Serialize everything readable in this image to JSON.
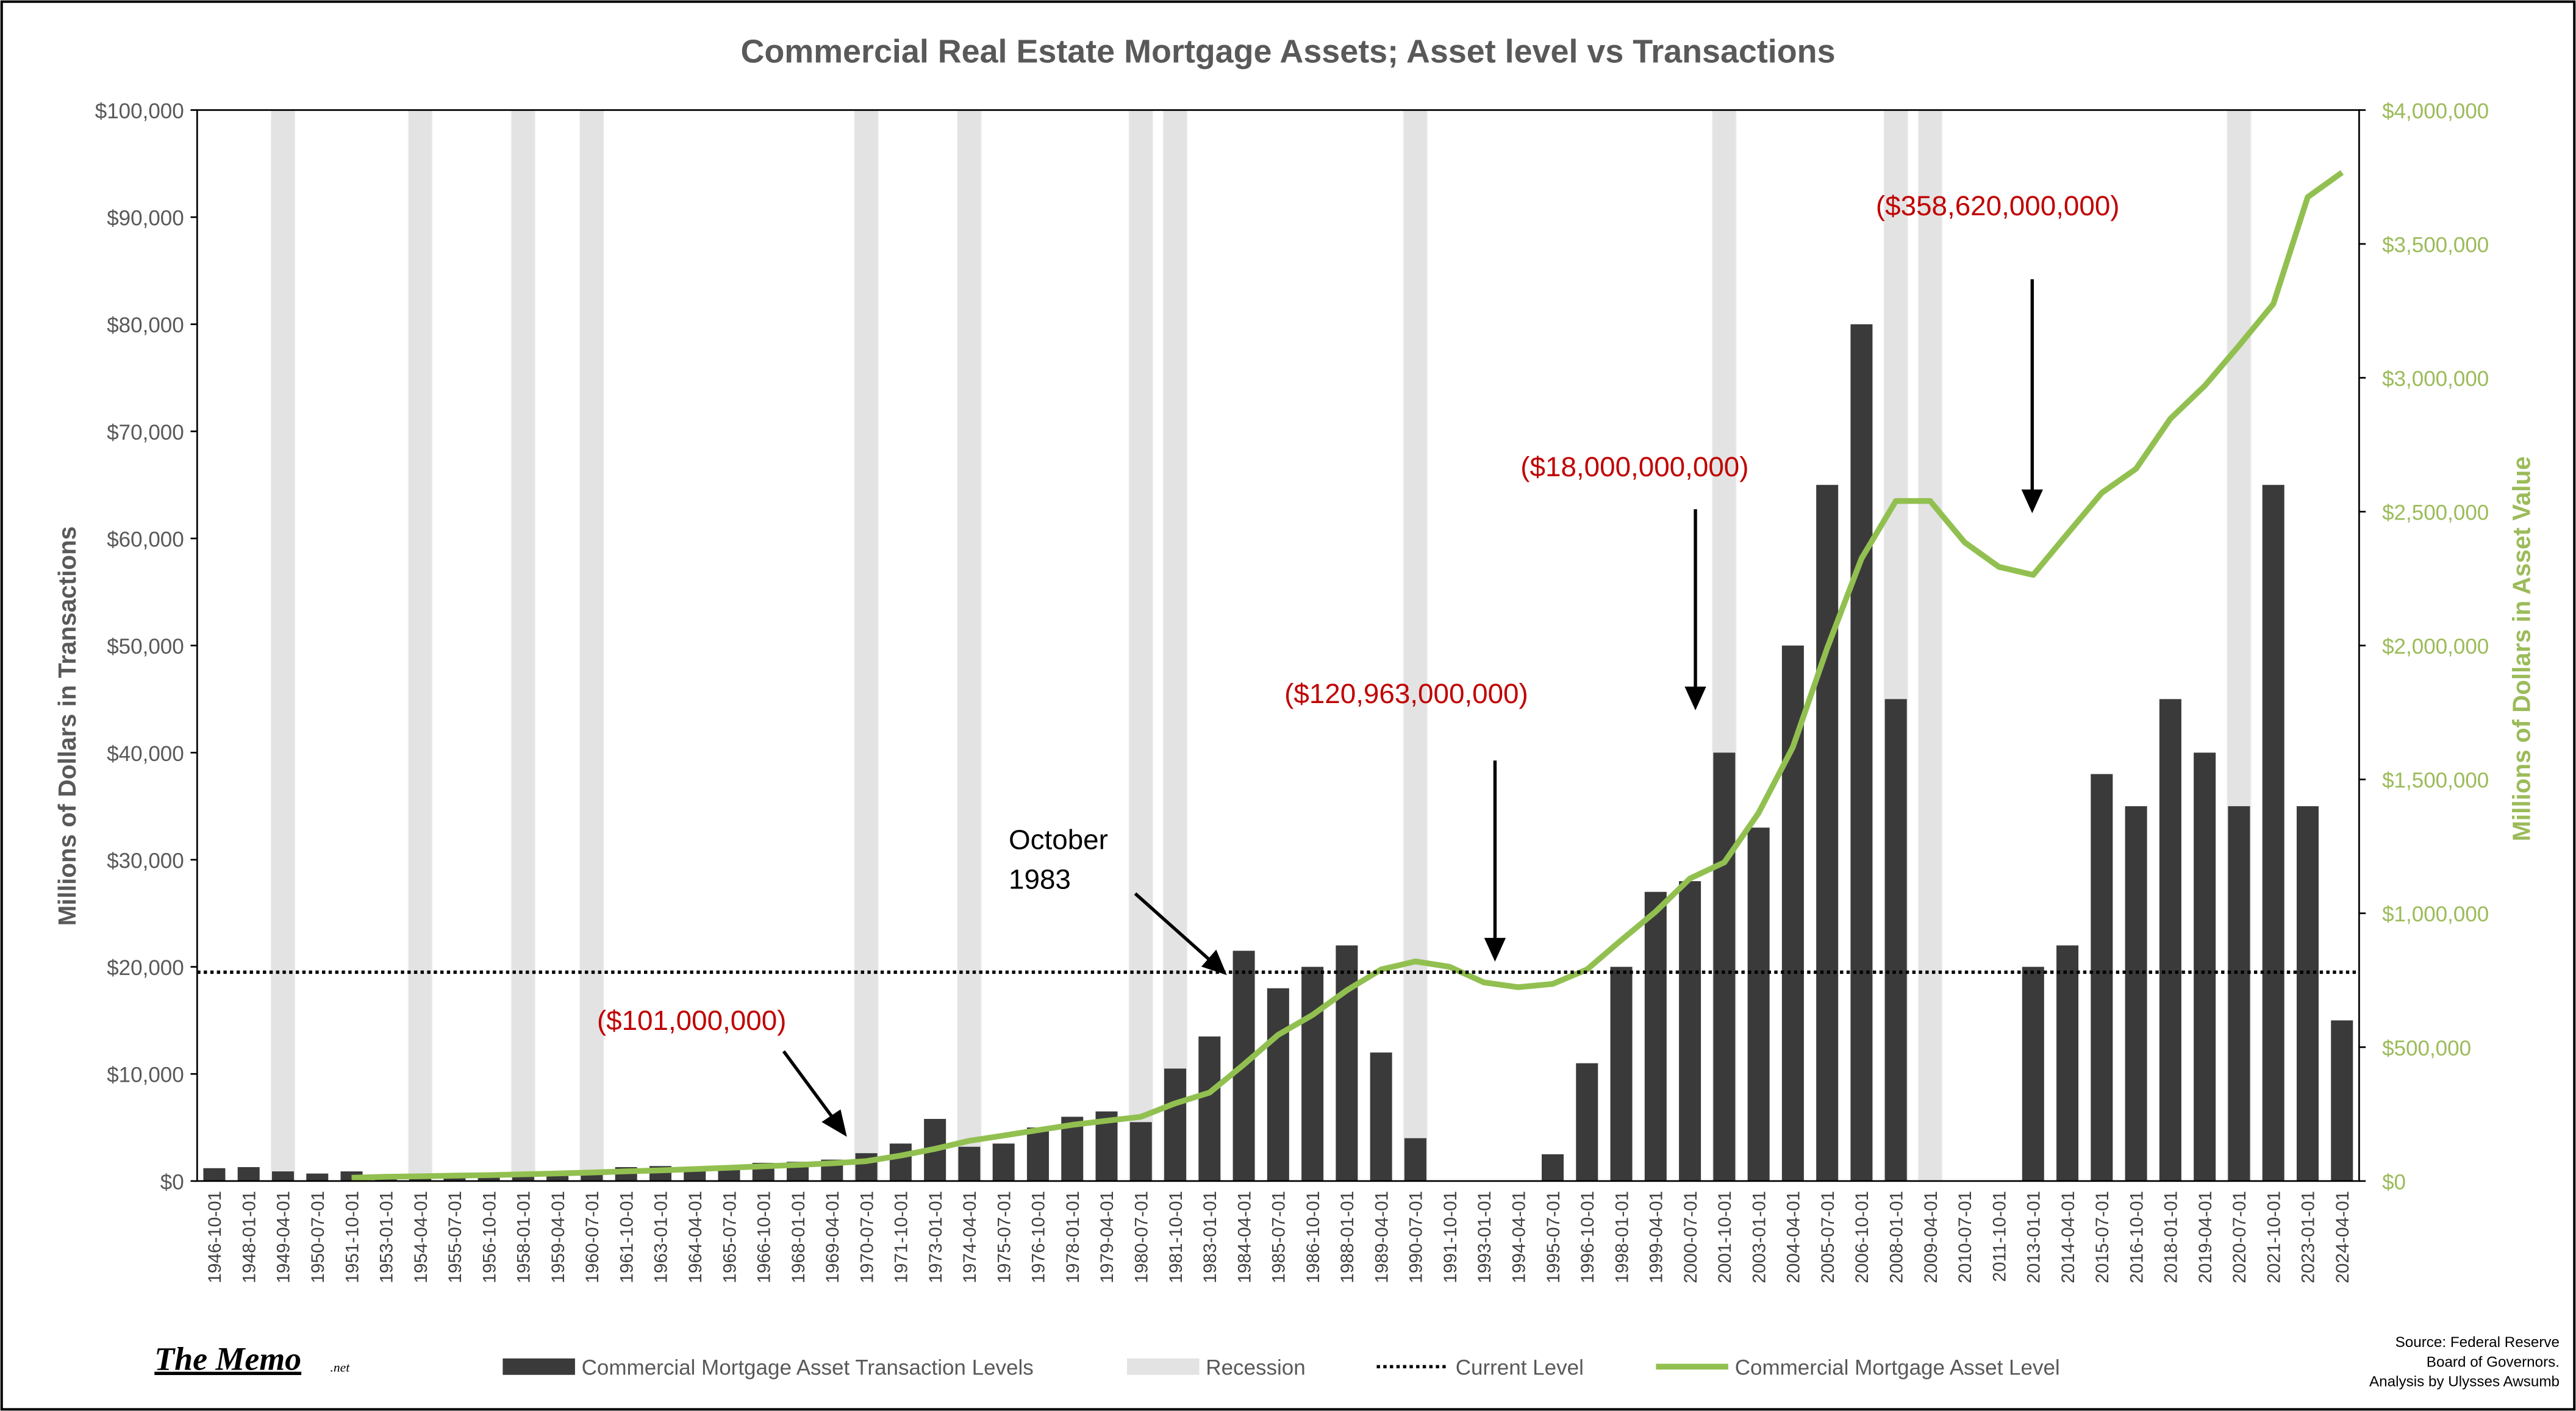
{
  "chart_data": {
    "type": "bar_line",
    "title": "Commercial Real Estate Mortgage Assets; Asset level vs Transactions",
    "y_label": "Millions of Dollars in Transactions",
    "y2_label": "Millions of Dollars in Asset Value",
    "categories": [
      "1946-10-01",
      "1948-01-01",
      "1949-04-01",
      "1950-07-01",
      "1951-10-01",
      "1953-01-01",
      "1954-04-01",
      "1955-07-01",
      "1956-10-01",
      "1958-01-01",
      "1959-04-01",
      "1960-07-01",
      "1961-10-01",
      "1963-01-01",
      "1964-04-01",
      "1965-07-01",
      "1966-10-01",
      "1968-01-01",
      "1969-04-01",
      "1970-07-01",
      "1971-10-01",
      "1973-01-01",
      "1974-04-01",
      "1975-07-01",
      "1976-10-01",
      "1978-01-01",
      "1979-04-01",
      "1980-07-01",
      "1981-10-01",
      "1983-01-01",
      "1984-04-01",
      "1985-07-01",
      "1986-10-01",
      "1988-01-01",
      "1989-04-01",
      "1990-07-01",
      "1991-10-01",
      "1993-01-01",
      "1994-04-01",
      "1995-07-01",
      "1996-10-01",
      "1998-01-01",
      "1999-04-01",
      "2000-07-01",
      "2001-10-01",
      "2003-01-01",
      "2004-04-01",
      "2005-07-01",
      "2006-10-01",
      "2008-01-01",
      "2009-04-01",
      "2010-07-01",
      "2011-10-01",
      "2013-01-01",
      "2014-04-01",
      "2015-07-01",
      "2016-10-01",
      "2018-01-01",
      "2019-04-01",
      "2020-07-01",
      "2021-10-01",
      "2023-01-01",
      "2024-04-01"
    ],
    "series": [
      {
        "name": "Commercial Mortgage Asset Transaction Levels",
        "type": "bar",
        "color": "#3a3a3a",
        "values": [
          1200,
          1300,
          900,
          700,
          900,
          200,
          300,
          400,
          500,
          600,
          800,
          900,
          1300,
          1400,
          1300,
          1400,
          1700,
          1800,
          2000,
          2600,
          3500,
          5800,
          3200,
          3500,
          5000,
          6000,
          6500,
          5500,
          10500,
          13500,
          21500,
          18000,
          20000,
          22000,
          12000,
          4000,
          0,
          0,
          0,
          2500,
          11000,
          20000,
          27000,
          28000,
          40000,
          33000,
          50000,
          65000,
          80000,
          45000,
          0,
          0,
          0,
          20000,
          22000,
          38000,
          35000,
          45000,
          40000,
          35000,
          65000,
          35000,
          15000
        ]
      },
      {
        "name": "Recession",
        "type": "band",
        "color": "#e3e3e3",
        "values": [
          null,
          null,
          100000,
          null,
          null,
          null,
          100000,
          null,
          null,
          100000,
          null,
          100000,
          null,
          null,
          null,
          null,
          null,
          null,
          null,
          100000,
          null,
          null,
          100000,
          null,
          null,
          null,
          null,
          100000,
          100000,
          null,
          null,
          null,
          null,
          null,
          null,
          100000,
          null,
          null,
          null,
          null,
          null,
          null,
          null,
          null,
          100000,
          null,
          null,
          null,
          null,
          100000,
          100000,
          null,
          null,
          null,
          null,
          null,
          null,
          null,
          null,
          100000,
          null,
          null,
          null
        ]
      },
      {
        "name": "Commercial Mortgage Asset Level",
        "type": "line",
        "axis": "y2",
        "color": "#92c050",
        "values": [
          null,
          null,
          null,
          null,
          12000,
          16000,
          18000,
          20000,
          22000,
          25000,
          28000,
          32000,
          36000,
          40000,
          45000,
          50000,
          55000,
          60000,
          66000,
          74000,
          95000,
          120000,
          150000,
          170000,
          190000,
          210000,
          225000,
          240000,
          290000,
          330000,
          435000,
          546000,
          620000,
          712000,
          790000,
          820000,
          800000,
          742000,
          724000,
          736000,
          790000,
          900000,
          1006000,
          1130000,
          1190000,
          1374000,
          1620000,
          1990000,
          2325000,
          2540000,
          2540000,
          2386000,
          2294000,
          2264000,
          2417000,
          2570000,
          2660000,
          2847000,
          2970000,
          3120000,
          3276000,
          3675000,
          3767000
        ]
      }
    ],
    "reference_line": {
      "name": "Current Level",
      "value": 19500,
      "color": "#000000"
    },
    "ylim": [
      0,
      100000
    ],
    "yticks": [
      {
        "value": 0,
        "label": "$0"
      },
      {
        "value": 10000,
        "label": "$10,000"
      },
      {
        "value": 20000,
        "label": "$20,000"
      },
      {
        "value": 30000,
        "label": "$30,000"
      },
      {
        "value": 40000,
        "label": "$40,000"
      },
      {
        "value": 50000,
        "label": "$50,000"
      },
      {
        "value": 60000,
        "label": "$60,000"
      },
      {
        "value": 70000,
        "label": "$70,000"
      },
      {
        "value": 80000,
        "label": "$80,000"
      },
      {
        "value": 90000,
        "label": "$90,000"
      },
      {
        "value": 100000,
        "label": "$100,000"
      }
    ],
    "y2lim": [
      0,
      4000000
    ],
    "y2ticks": [
      {
        "value": 0,
        "label": "$0"
      },
      {
        "value": 500000,
        "label": "$500,000"
      },
      {
        "value": 1000000,
        "label": "$1,000,000"
      },
      {
        "value": 1500000,
        "label": "$1,500,000"
      },
      {
        "value": 2000000,
        "label": "$2,000,000"
      },
      {
        "value": 2500000,
        "label": "$2,500,000"
      },
      {
        "value": 3000000,
        "label": "$3,000,000"
      },
      {
        "value": 3500000,
        "label": "$3,500,000"
      },
      {
        "value": 4000000,
        "label": "$4,000,000"
      }
    ],
    "annotations": [
      "($101,000,000)",
      "($120,963,000,000)",
      "($18,000,000,000)",
      "($358,620,000,000)"
    ],
    "note_lines": [
      "October",
      "1983"
    ],
    "logo": "The Memo",
    "logo_suffix": ".net",
    "source_lines": [
      "Source: Federal Reserve",
      "Board of Governors.",
      "Analysis by Ulysses Awsumb"
    ]
  }
}
